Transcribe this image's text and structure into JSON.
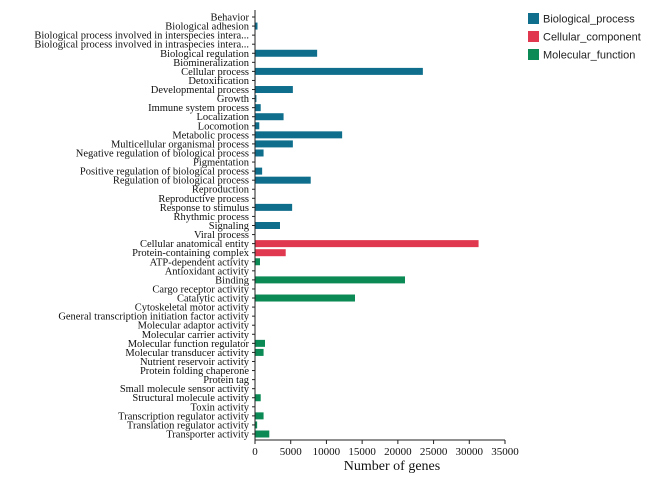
{
  "chart_data": {
    "type": "bar",
    "orientation": "horizontal",
    "title": "",
    "xlabel": "Number of genes",
    "ylabel": "",
    "xlim": [
      0,
      35000
    ],
    "xticks": [
      0,
      5000,
      10000,
      15000,
      20000,
      25000,
      30000,
      35000
    ],
    "legend_position": "top-right",
    "series": [
      {
        "name": "Biological_process",
        "color": "#0f6e8c"
      },
      {
        "name": "Cellular_component",
        "color": "#e0394f"
      },
      {
        "name": "Molecular_function",
        "color": "#0b8a55"
      }
    ],
    "bars": [
      {
        "label": "Behavior",
        "value": 50,
        "series": "Biological_process"
      },
      {
        "label": "Biological adhesion",
        "value": 350,
        "series": "Biological_process"
      },
      {
        "label": "Biological process involved in interspecies intera...",
        "value": 50,
        "series": "Biological_process"
      },
      {
        "label": "Biological process involved in intraspecies intera...",
        "value": 30,
        "series": "Biological_process"
      },
      {
        "label": "Biological regulation",
        "value": 8700,
        "series": "Biological_process"
      },
      {
        "label": "Biomineralization",
        "value": 30,
        "series": "Biological_process"
      },
      {
        "label": "Cellular process",
        "value": 23500,
        "series": "Biological_process"
      },
      {
        "label": "Detoxification",
        "value": 80,
        "series": "Biological_process"
      },
      {
        "label": "Developmental process",
        "value": 5300,
        "series": "Biological_process"
      },
      {
        "label": "Growth",
        "value": 200,
        "series": "Biological_process"
      },
      {
        "label": "Immune system process",
        "value": 800,
        "series": "Biological_process"
      },
      {
        "label": "Localization",
        "value": 4000,
        "series": "Biological_process"
      },
      {
        "label": "Locomotion",
        "value": 600,
        "series": "Biological_process"
      },
      {
        "label": "Metabolic process",
        "value": 12200,
        "series": "Biological_process"
      },
      {
        "label": "Multicellular organismal process",
        "value": 5300,
        "series": "Biological_process"
      },
      {
        "label": "Negative regulation of biological process",
        "value": 1200,
        "series": "Biological_process"
      },
      {
        "label": "Pigmentation",
        "value": 50,
        "series": "Biological_process"
      },
      {
        "label": "Positive regulation of biological process",
        "value": 1000,
        "series": "Biological_process"
      },
      {
        "label": "Regulation of biological process",
        "value": 7800,
        "series": "Biological_process"
      },
      {
        "label": "Reproduction",
        "value": 30,
        "series": "Biological_process"
      },
      {
        "label": "Reproductive process",
        "value": 30,
        "series": "Biological_process"
      },
      {
        "label": "Response to stimulus",
        "value": 5200,
        "series": "Biological_process"
      },
      {
        "label": "Rhythmic process",
        "value": 50,
        "series": "Biological_process"
      },
      {
        "label": "Signaling",
        "value": 3500,
        "series": "Biological_process"
      },
      {
        "label": "Viral process",
        "value": 30,
        "series": "Biological_process"
      },
      {
        "label": "Cellular anatomical entity",
        "value": 31300,
        "series": "Cellular_component"
      },
      {
        "label": "Protein-containing complex",
        "value": 4300,
        "series": "Cellular_component"
      },
      {
        "label": "ATP-dependent activity",
        "value": 700,
        "series": "Molecular_function"
      },
      {
        "label": "Antioxidant activity",
        "value": 50,
        "series": "Molecular_function"
      },
      {
        "label": "Binding",
        "value": 21000,
        "series": "Molecular_function"
      },
      {
        "label": "Cargo receptor activity",
        "value": 30,
        "series": "Molecular_function"
      },
      {
        "label": "Catalytic activity",
        "value": 14000,
        "series": "Molecular_function"
      },
      {
        "label": "Cytoskeletal motor activity",
        "value": 50,
        "series": "Molecular_function"
      },
      {
        "label": "General transcription initiation factor activity",
        "value": 40,
        "series": "Molecular_function"
      },
      {
        "label": "Molecular adaptor activity",
        "value": 50,
        "series": "Molecular_function"
      },
      {
        "label": "Molecular carrier activity",
        "value": 40,
        "series": "Molecular_function"
      },
      {
        "label": "Molecular function regulator",
        "value": 1400,
        "series": "Molecular_function"
      },
      {
        "label": "Molecular transducer activity",
        "value": 1200,
        "series": "Molecular_function"
      },
      {
        "label": "Nutrient reservoir activity",
        "value": 30,
        "series": "Molecular_function"
      },
      {
        "label": "Protein folding chaperone",
        "value": 50,
        "series": "Molecular_function"
      },
      {
        "label": "Protein tag",
        "value": 30,
        "series": "Molecular_function"
      },
      {
        "label": "Small molecule sensor activity",
        "value": 30,
        "series": "Molecular_function"
      },
      {
        "label": "Structural molecule activity",
        "value": 800,
        "series": "Molecular_function"
      },
      {
        "label": "Toxin activity",
        "value": 40,
        "series": "Molecular_function"
      },
      {
        "label": "Transcription regulator activity",
        "value": 1200,
        "series": "Molecular_function"
      },
      {
        "label": "Translation regulator activity",
        "value": 300,
        "series": "Molecular_function"
      },
      {
        "label": "Transporter activity",
        "value": 2000,
        "series": "Molecular_function"
      }
    ]
  }
}
